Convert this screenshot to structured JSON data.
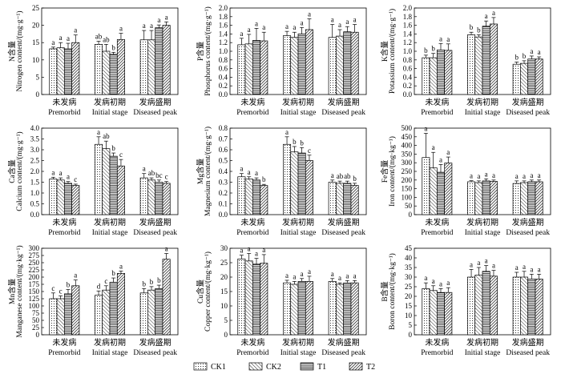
{
  "chart_data": [
    {
      "type": "bar",
      "id": "N",
      "ylabel_cn": "N含量",
      "ylabel_en": "Nitrogen content/(mg·g⁻¹)",
      "ylim": [
        0,
        25
      ],
      "yticks": [
        0,
        5,
        10,
        15,
        20,
        25
      ],
      "groups": [
        {
          "cn": "未发病",
          "en": "Premorbid",
          "values": [
            13.2,
            13.5,
            13.2,
            15.0
          ],
          "errors": [
            0.5,
            1.5,
            1.6,
            2.2
          ],
          "letters": [
            "a",
            "a",
            "a",
            "a"
          ]
        },
        {
          "cn": "发病初期",
          "en": "Initial stage",
          "values": [
            14.5,
            12.5,
            11.6,
            15.9
          ],
          "errors": [
            0.9,
            2.0,
            0.6,
            1.8
          ],
          "letters": [
            "ab",
            "ab",
            "b",
            "a"
          ]
        },
        {
          "cn": "发病盛期",
          "en": "Diseased peak",
          "values": [
            15.8,
            15.8,
            19.3,
            20.0
          ],
          "errors": [
            2.7,
            2.7,
            0.8,
            1.0
          ],
          "letters": [
            "a",
            "a",
            "a",
            "a"
          ]
        }
      ]
    },
    {
      "type": "bar",
      "id": "P",
      "ylabel_cn": "P含量",
      "ylabel_en": "Phosphorus content/(mg·g⁻¹)",
      "ylim": [
        0,
        2.0
      ],
      "yticks": [
        0,
        0.2,
        0.4,
        0.6,
        0.8,
        1.0,
        1.2,
        1.4,
        1.6,
        1.8,
        2.0
      ],
      "groups": [
        {
          "cn": "未发病",
          "en": "Premorbid",
          "values": [
            1.15,
            1.17,
            1.25,
            1.24
          ],
          "errors": [
            0.15,
            0.22,
            0.28,
            0.2
          ],
          "letters": [
            "a",
            "a",
            "a",
            "a"
          ]
        },
        {
          "cn": "发病初期",
          "en": "Initial stage",
          "values": [
            1.36,
            1.32,
            1.4,
            1.5
          ],
          "errors": [
            0.1,
            0.12,
            0.15,
            0.25
          ],
          "letters": [
            "a",
            "a",
            "a",
            "a"
          ]
        },
        {
          "cn": "发病盛期",
          "en": "Diseased peak",
          "values": [
            1.32,
            1.35,
            1.45,
            1.44
          ],
          "errors": [
            0.3,
            0.15,
            0.12,
            0.18
          ],
          "letters": [
            "a",
            "a",
            "a",
            "a"
          ]
        }
      ]
    },
    {
      "type": "bar",
      "id": "K",
      "ylabel_cn": "K含量",
      "ylabel_en": "Potassium content/(mg·g⁻¹)",
      "ylim": [
        0,
        2.0
      ],
      "yticks": [
        0,
        0.2,
        0.4,
        0.6,
        0.8,
        1.0,
        1.2,
        1.4,
        1.6,
        1.8,
        2.0
      ],
      "groups": [
        {
          "cn": "未发病",
          "en": "Premorbid",
          "values": [
            0.85,
            0.85,
            1.03,
            1.02
          ],
          "errors": [
            0.06,
            0.1,
            0.15,
            0.15
          ],
          "letters": [
            "b",
            "b",
            "a",
            "a"
          ]
        },
        {
          "cn": "发病初期",
          "en": "Initial stage",
          "values": [
            1.38,
            1.33,
            1.58,
            1.63
          ],
          "errors": [
            0.06,
            0.05,
            0.12,
            0.15
          ],
          "letters": [
            "b",
            "b",
            "a",
            "a"
          ]
        },
        {
          "cn": "发病盛期",
          "en": "Diseased peak",
          "values": [
            0.7,
            0.72,
            0.82,
            0.82
          ],
          "errors": [
            0.05,
            0.06,
            0.07,
            0.05
          ],
          "letters": [
            "b",
            "b",
            "a",
            "a"
          ]
        }
      ]
    },
    {
      "type": "bar",
      "id": "Ca",
      "ylabel_cn": "Ca含量",
      "ylabel_en": "Calcium content/(mg·g⁻¹)",
      "ylim": [
        0,
        4.0
      ],
      "yticks": [
        0,
        0.5,
        1.0,
        1.5,
        2.0,
        2.5,
        3.0,
        3.5,
        4.0
      ],
      "groups": [
        {
          "cn": "未发病",
          "en": "Premorbid",
          "values": [
            1.65,
            1.6,
            1.45,
            1.35
          ],
          "errors": [
            0.08,
            0.1,
            0.08,
            0.06
          ],
          "letters": [
            "a",
            "a",
            "a",
            "c"
          ]
        },
        {
          "cn": "发病初期",
          "en": "Initial stage",
          "values": [
            3.25,
            3.05,
            2.7,
            2.25
          ],
          "errors": [
            0.35,
            0.35,
            0.15,
            0.3
          ],
          "letters": [
            "a",
            "ab",
            "b",
            "c"
          ]
        },
        {
          "cn": "发病盛期",
          "en": "Diseased peak",
          "values": [
            1.7,
            1.6,
            1.5,
            1.45
          ],
          "errors": [
            0.2,
            0.1,
            0.1,
            0.08
          ],
          "letters": [
            "a",
            "ab",
            "bc",
            "c"
          ]
        }
      ]
    },
    {
      "type": "bar",
      "id": "Mg",
      "ylabel_cn": "Mg含量",
      "ylabel_en": "Magnesium content/(mg·g⁻¹)",
      "ylim": [
        0,
        0.8
      ],
      "yticks": [
        0,
        0.1,
        0.2,
        0.3,
        0.4,
        0.5,
        0.6,
        0.7,
        0.8
      ],
      "groups": [
        {
          "cn": "未发病",
          "en": "Premorbid",
          "values": [
            0.35,
            0.33,
            0.32,
            0.27
          ],
          "errors": [
            0.03,
            0.02,
            0.02,
            0.01
          ],
          "letters": [
            "a",
            "a",
            "a",
            "b"
          ]
        },
        {
          "cn": "发病初期",
          "en": "Initial stage",
          "values": [
            0.65,
            0.58,
            0.57,
            0.5
          ],
          "errors": [
            0.07,
            0.05,
            0.05,
            0.05
          ],
          "letters": [
            "a",
            "b",
            "b",
            "c"
          ]
        },
        {
          "cn": "发病盛期",
          "en": "Diseased peak",
          "values": [
            0.3,
            0.29,
            0.29,
            0.27
          ],
          "errors": [
            0.02,
            0.02,
            0.02,
            0.02
          ],
          "letters": [
            "a",
            "ab",
            "ab",
            "b"
          ]
        }
      ]
    },
    {
      "type": "bar",
      "id": "Fe",
      "ylabel_cn": "Fe含量",
      "ylabel_en": "Iron content/(mg·kg⁻¹)",
      "ylim": [
        0,
        500
      ],
      "yticks": [
        0,
        50,
        100,
        150,
        200,
        250,
        300,
        350,
        400,
        450,
        500
      ],
      "groups": [
        {
          "cn": "未发病",
          "en": "Premorbid",
          "values": [
            330,
            270,
            245,
            298
          ],
          "errors": [
            140,
            90,
            45,
            35
          ],
          "letters": [
            "a",
            "a",
            "a",
            "a"
          ]
        },
        {
          "cn": "发病初期",
          "en": "Initial stage",
          "values": [
            190,
            185,
            195,
            192
          ],
          "errors": [
            6,
            10,
            12,
            8
          ],
          "letters": [
            "a",
            "a",
            "a",
            "a"
          ]
        },
        {
          "cn": "发病盛期",
          "en": "Diseased peak",
          "values": [
            180,
            185,
            190,
            190
          ],
          "errors": [
            15,
            10,
            10,
            10
          ],
          "letters": [
            "a",
            "a",
            "a",
            "a"
          ]
        }
      ]
    },
    {
      "type": "bar",
      "id": "Mn",
      "ylabel_cn": "Mn含量",
      "ylabel_en": "Manganese content/(mg·kg⁻¹)",
      "ylim": [
        0,
        300
      ],
      "yticks": [
        0,
        25,
        50,
        75,
        100,
        125,
        150,
        175,
        200,
        225,
        250,
        275,
        300
      ],
      "groups": [
        {
          "cn": "未发病",
          "en": "Premorbid",
          "values": [
            125,
            125,
            142,
            170
          ],
          "errors": [
            20,
            10,
            15,
            20
          ],
          "letters": [
            "c",
            "c",
            "b",
            "a"
          ]
        },
        {
          "cn": "发病初期",
          "en": "Initial stage",
          "values": [
            137,
            155,
            182,
            213
          ],
          "errors": [
            15,
            15,
            15,
            8
          ],
          "letters": [
            "d",
            "c",
            "b",
            "a"
          ]
        },
        {
          "cn": "发病盛期",
          "en": "Diseased peak",
          "values": [
            145,
            155,
            160,
            262
          ],
          "errors": [
            15,
            12,
            12,
            20
          ],
          "letters": [
            "b",
            "b",
            "b",
            "a"
          ]
        }
      ]
    },
    {
      "type": "bar",
      "id": "Cu",
      "ylabel_cn": "Cu含量",
      "ylabel_en": "Copper content/(mg·kg⁻¹)",
      "ylim": [
        0,
        30
      ],
      "yticks": [
        0,
        5,
        10,
        15,
        20,
        25,
        30
      ],
      "groups": [
        {
          "cn": "未发病",
          "en": "Premorbid",
          "values": [
            26.3,
            25.6,
            24.5,
            24.8
          ],
          "errors": [
            1.3,
            2.6,
            2.0,
            3.0
          ],
          "letters": [
            "a",
            "a",
            "a",
            "a"
          ]
        },
        {
          "cn": "发病初期",
          "en": "Initial stage",
          "values": [
            18.0,
            17.5,
            18.5,
            18.5
          ],
          "errors": [
            0.9,
            1.0,
            1.0,
            1.8
          ],
          "letters": [
            "a",
            "a",
            "a",
            "a"
          ]
        },
        {
          "cn": "发病盛期",
          "en": "Diseased peak",
          "values": [
            18.5,
            17.5,
            18.0,
            18.0
          ],
          "errors": [
            1.0,
            0.5,
            0.8,
            0.8
          ],
          "letters": [
            "a",
            "a",
            "a",
            "a"
          ]
        }
      ]
    },
    {
      "type": "bar",
      "id": "B",
      "ylabel_cn": "B含量",
      "ylabel_en": "Boron content/(mg·kg⁻¹)",
      "ylim": [
        0,
        45
      ],
      "yticks": [
        0,
        5,
        10,
        15,
        20,
        25,
        30,
        35,
        40,
        45
      ],
      "groups": [
        {
          "cn": "未发病",
          "en": "Premorbid",
          "values": [
            24.0,
            23.0,
            22.0,
            22.0
          ],
          "errors": [
            3.0,
            2.5,
            2.0,
            2.5
          ],
          "letters": [
            "a",
            "a",
            "a",
            "a"
          ]
        },
        {
          "cn": "发病初期",
          "en": "Initial stage",
          "values": [
            30.0,
            31.0,
            33.0,
            30.5
          ],
          "errors": [
            4.0,
            4.0,
            3.0,
            3.0
          ],
          "letters": [
            "a",
            "a",
            "a",
            "a"
          ]
        },
        {
          "cn": "发病盛期",
          "en": "Diseased peak",
          "values": [
            30.0,
            30.0,
            29.0,
            29.0
          ],
          "errors": [
            2.5,
            3.0,
            2.5,
            2.5
          ],
          "letters": [
            "a",
            "a",
            "a",
            "a"
          ]
        }
      ]
    }
  ],
  "legend": [
    {
      "name": "CK1",
      "pattern": "dots"
    },
    {
      "name": "CK2",
      "pattern": "backslash"
    },
    {
      "name": "T1",
      "pattern": "horiz"
    },
    {
      "name": "T2",
      "pattern": "slash"
    }
  ]
}
